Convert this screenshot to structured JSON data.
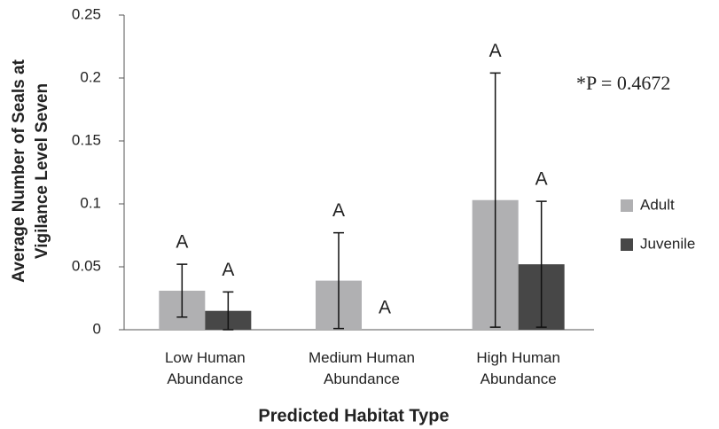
{
  "chart_data": {
    "type": "bar",
    "ylabel": [
      "Average Number of Seals at",
      "Vigilance Level  Seven"
    ],
    "xlabel": "Predicted Habitat Type",
    "annotation": "*P = 0.4672",
    "categories": [
      "Low Human Abundance",
      "Medium Human Abundance",
      "High Human Abundance"
    ],
    "series": [
      {
        "name": "Adult",
        "color": "#b0b0b2",
        "values": [
          0.031,
          0.039,
          0.103
        ],
        "errors": [
          0.021,
          0.038,
          0.101
        ],
        "labels": [
          "A",
          "A",
          "A"
        ]
      },
      {
        "name": "Juvenile",
        "color": "#474747",
        "values": [
          0.015,
          0,
          0.052
        ],
        "errors": [
          0.015,
          0,
          0.05
        ],
        "labels": [
          "A",
          "A",
          "A"
        ]
      }
    ],
    "ylim": [
      0,
      0.25
    ],
    "yticks": [
      0,
      0.05,
      0.1,
      0.15,
      0.2,
      0.25
    ],
    "grid": false
  }
}
